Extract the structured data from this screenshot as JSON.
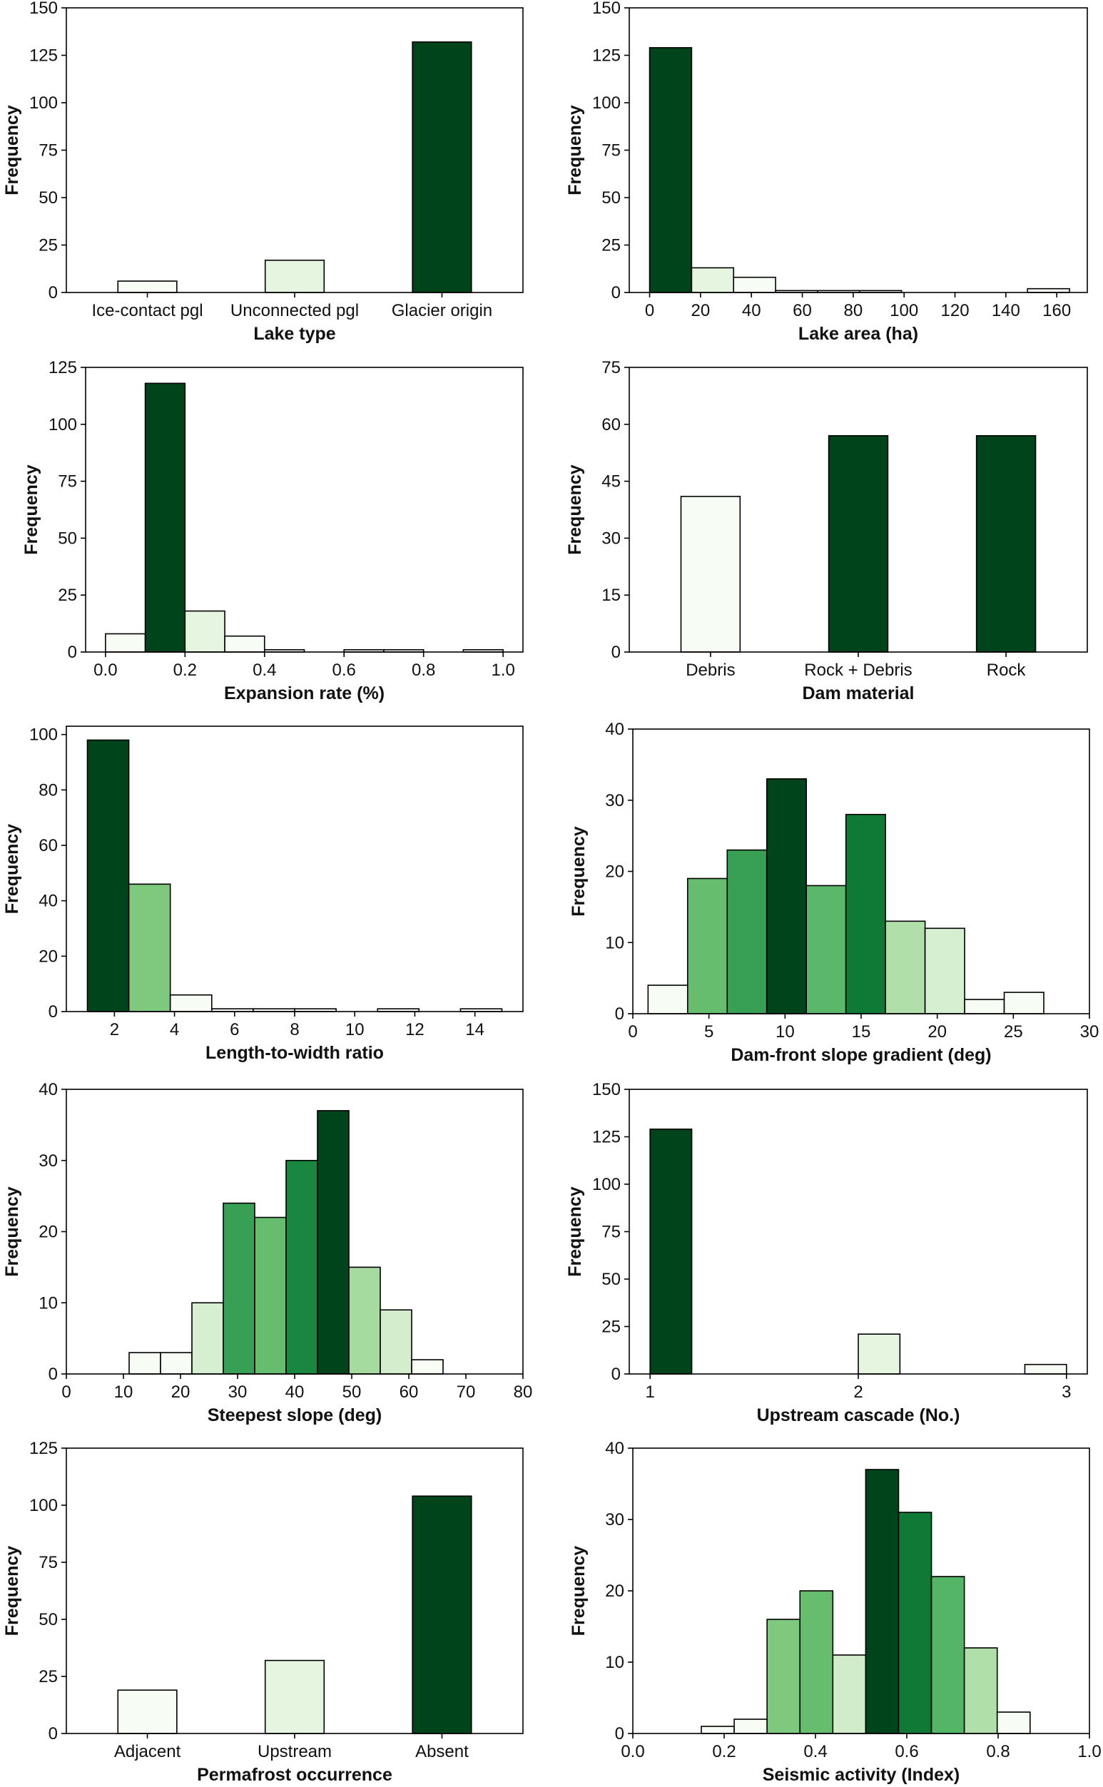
{
  "chart_data": [
    {
      "type": "bar",
      "xlabel": "Lake type",
      "ylabel": "Frequency",
      "categories": [
        "Ice-contact pgl",
        "Unconnected pgl",
        "Glacier origin"
      ],
      "values": [
        6,
        17,
        132
      ],
      "colors": [
        "#f7fcf5",
        "#e5f5e0",
        "#00441b"
      ],
      "ylim": [
        0,
        150
      ],
      "yticks": [
        "0",
        "25",
        "50",
        "75",
        "100",
        "125",
        "150"
      ]
    },
    {
      "type": "bar",
      "xlabel": "Lake area (ha)",
      "ylabel": "Frequency",
      "bins": [
        [
          0,
          16.5
        ],
        [
          16.5,
          33
        ],
        [
          33,
          49.5
        ],
        [
          49.5,
          66
        ],
        [
          66,
          82.5
        ],
        [
          82.5,
          99
        ],
        [
          99,
          115.5
        ],
        [
          115.5,
          132
        ],
        [
          132,
          148.5
        ],
        [
          148.5,
          165
        ]
      ],
      "values": [
        129,
        13,
        8,
        1,
        1,
        1,
        0,
        0,
        0,
        2
      ],
      "colors": [
        "#00441b",
        "#e5f5e0",
        "#f7fcf5",
        "#f7fcf5",
        "#f7fcf5",
        "#f7fcf5",
        "#f7fcf5",
        "#f7fcf5",
        "#f7fcf5",
        "#f7fcf5"
      ],
      "xlim": [
        -8,
        172
      ],
      "ylim": [
        0,
        150
      ],
      "xticks": [
        "0",
        "20",
        "40",
        "60",
        "80",
        "100",
        "120",
        "140",
        "160"
      ],
      "yticks": [
        "0",
        "25",
        "50",
        "75",
        "100",
        "125",
        "150"
      ]
    },
    {
      "type": "bar",
      "xlabel": "Expansion rate (%)",
      "ylabel": "Frequency",
      "bins": [
        [
          0,
          0.1
        ],
        [
          0.1,
          0.2
        ],
        [
          0.2,
          0.3
        ],
        [
          0.3,
          0.4
        ],
        [
          0.4,
          0.5
        ],
        [
          0.5,
          0.6
        ],
        [
          0.6,
          0.7
        ],
        [
          0.7,
          0.8
        ],
        [
          0.8,
          0.9
        ],
        [
          0.9,
          1.0
        ]
      ],
      "values": [
        8,
        118,
        18,
        7,
        1,
        0,
        1,
        1,
        0,
        1
      ],
      "colors": [
        "#f7fcf5",
        "#00441b",
        "#e5f5e0",
        "#f7fcf5",
        "#f7fcf5",
        "#f7fcf5",
        "#f7fcf5",
        "#f7fcf5",
        "#f7fcf5",
        "#f7fcf5"
      ],
      "xlim": [
        -0.05,
        1.05
      ],
      "ylim": [
        0,
        125
      ],
      "xticks": [
        "0.0",
        "0.2",
        "0.4",
        "0.6",
        "0.8",
        "1.0"
      ],
      "yticks": [
        "0",
        "25",
        "50",
        "75",
        "100",
        "125"
      ]
    },
    {
      "type": "bar",
      "xlabel": "Dam material",
      "ylabel": "Frequency",
      "categories": [
        "Debris",
        "Rock + Debris",
        "Rock"
      ],
      "values": [
        41,
        57,
        57
      ],
      "colors": [
        "#f7fcf5",
        "#00441b",
        "#00441b"
      ],
      "ylim": [
        0,
        75
      ],
      "yticks": [
        "0",
        "15",
        "30",
        "45",
        "60",
        "75"
      ]
    },
    {
      "type": "bar",
      "xlabel": "Length-to-width ratio",
      "ylabel": "Frequency",
      "bins": [
        [
          1.1,
          2.48
        ],
        [
          2.48,
          3.86
        ],
        [
          3.86,
          5.24
        ],
        [
          5.24,
          6.62
        ],
        [
          6.62,
          8.0
        ],
        [
          8.0,
          9.38
        ],
        [
          9.38,
          10.76
        ],
        [
          10.76,
          12.14
        ],
        [
          12.14,
          13.52
        ],
        [
          13.52,
          14.9
        ]
      ],
      "values": [
        98,
        46,
        6,
        1,
        1,
        1,
        0,
        1,
        0,
        1
      ],
      "colors": [
        "#00441b",
        "#7fc97f",
        "#f7fcf5",
        "#f7fcf5",
        "#f7fcf5",
        "#f7fcf5",
        "#f7fcf5",
        "#f7fcf5",
        "#f7fcf5",
        "#f7fcf5"
      ],
      "xlim": [
        0.4,
        15.6
      ],
      "ylim": [
        0,
        103
      ],
      "xticks": [
        "2",
        "4",
        "6",
        "8",
        "10",
        "12",
        "14"
      ],
      "yticks": [
        "0",
        "20",
        "40",
        "60",
        "80",
        "100"
      ]
    },
    {
      "type": "bar",
      "xlabel": "Dam-front slope gradient (deg)",
      "ylabel": "Frequency",
      "bins": [
        [
          1.0,
          3.6
        ],
        [
          3.6,
          6.2
        ],
        [
          6.2,
          8.8
        ],
        [
          8.8,
          11.4
        ],
        [
          11.4,
          14.0
        ],
        [
          14.0,
          16.6
        ],
        [
          16.6,
          19.2
        ],
        [
          19.2,
          21.8
        ],
        [
          21.8,
          24.4
        ],
        [
          24.4,
          27.0
        ]
      ],
      "values": [
        4,
        19,
        23,
        33,
        18,
        28,
        13,
        12,
        2,
        3
      ],
      "colors": [
        "#f7fcf5",
        "#66bd6e",
        "#37a055",
        "#00441b",
        "#5bb86a",
        "#0e7a36",
        "#b1dfa9",
        "#d6efd0",
        "#f7fcf5",
        "#f7fcf5"
      ],
      "xlim": [
        0,
        30
      ],
      "ylim": [
        0,
        40
      ],
      "xticks": [
        "0",
        "5",
        "10",
        "15",
        "20",
        "25",
        "30"
      ],
      "yticks": [
        "0",
        "10",
        "20",
        "30",
        "40"
      ]
    },
    {
      "type": "bar",
      "xlabel": "Steepest slope (deg)",
      "ylabel": "Frequency",
      "bins": [
        [
          11,
          16.5
        ],
        [
          16.5,
          22
        ],
        [
          22,
          27.5
        ],
        [
          27.5,
          33
        ],
        [
          33,
          38.5
        ],
        [
          38.5,
          44
        ],
        [
          44,
          49.5
        ],
        [
          49.5,
          55
        ],
        [
          55,
          60.5
        ],
        [
          60.5,
          66
        ]
      ],
      "values": [
        3,
        3,
        10,
        24,
        22,
        30,
        37,
        15,
        9,
        2
      ],
      "colors": [
        "#f7fcf5",
        "#f7fcf5",
        "#d6efd0",
        "#37a055",
        "#66bd6e",
        "#19873f",
        "#00441b",
        "#a5db9f",
        "#d4eecd",
        "#f7fcf5"
      ],
      "xlim": [
        0,
        80
      ],
      "ylim": [
        0,
        40
      ],
      "xticks": [
        "0",
        "10",
        "20",
        "30",
        "40",
        "50",
        "60",
        "70",
        "80"
      ],
      "yticks": [
        "0",
        "10",
        "20",
        "30",
        "40"
      ]
    },
    {
      "type": "bar",
      "xlabel": "Upstream cascade (No.)",
      "ylabel": "Frequency",
      "bins": [
        [
          1.0,
          1.2
        ],
        [
          1.2,
          1.4
        ],
        [
          1.4,
          1.6
        ],
        [
          1.6,
          1.8
        ],
        [
          1.8,
          2.0
        ],
        [
          2.0,
          2.2
        ],
        [
          2.2,
          2.4
        ],
        [
          2.4,
          2.6
        ],
        [
          2.6,
          2.8
        ],
        [
          2.8,
          3.0
        ]
      ],
      "values": [
        129,
        0,
        0,
        0,
        0,
        21,
        0,
        0,
        0,
        5
      ],
      "colors": [
        "#00441b",
        "#f7fcf5",
        "#f7fcf5",
        "#f7fcf5",
        "#f7fcf5",
        "#e5f5e0",
        "#f7fcf5",
        "#f7fcf5",
        "#f7fcf5",
        "#f7fcf5"
      ],
      "xlim": [
        0.9,
        3.1
      ],
      "ylim": [
        0,
        150
      ],
      "xticks": [
        "1",
        "2",
        "3"
      ],
      "yticks": [
        "0",
        "25",
        "50",
        "75",
        "100",
        "125",
        "150"
      ]
    },
    {
      "type": "bar",
      "xlabel": "Permafrost occurrence",
      "ylabel": "Frequency",
      "categories": [
        "Adjacent",
        "Upstream",
        "Absent"
      ],
      "values": [
        19,
        32,
        104
      ],
      "colors": [
        "#f7fcf5",
        "#e5f5e0",
        "#00441b"
      ],
      "ylim": [
        0,
        125
      ],
      "yticks": [
        "0",
        "25",
        "50",
        "75",
        "100",
        "125"
      ]
    },
    {
      "type": "bar",
      "xlabel": "Seismic activity (Index)",
      "ylabel": "Frequency",
      "bins": [
        [
          0.15,
          0.222
        ],
        [
          0.222,
          0.294
        ],
        [
          0.294,
          0.366
        ],
        [
          0.366,
          0.438
        ],
        [
          0.438,
          0.51
        ],
        [
          0.51,
          0.582
        ],
        [
          0.582,
          0.654
        ],
        [
          0.654,
          0.726
        ],
        [
          0.726,
          0.798
        ],
        [
          0.798,
          0.87
        ]
      ],
      "values": [
        1,
        2,
        16,
        20,
        11,
        37,
        31,
        22,
        12,
        3
      ],
      "colors": [
        "#f7fcf5",
        "#f7fcf5",
        "#7fc97f",
        "#66bd6e",
        "#d0ecc9",
        "#00441b",
        "#0e7a36",
        "#55b567",
        "#b1dfa9",
        "#f7fcf5"
      ],
      "xlim": [
        0,
        1
      ],
      "ylim": [
        0,
        40
      ],
      "xticks": [
        "0.0",
        "0.2",
        "0.4",
        "0.6",
        "0.8",
        "1.0"
      ],
      "yticks": [
        "0",
        "10",
        "20",
        "30",
        "40"
      ]
    }
  ]
}
